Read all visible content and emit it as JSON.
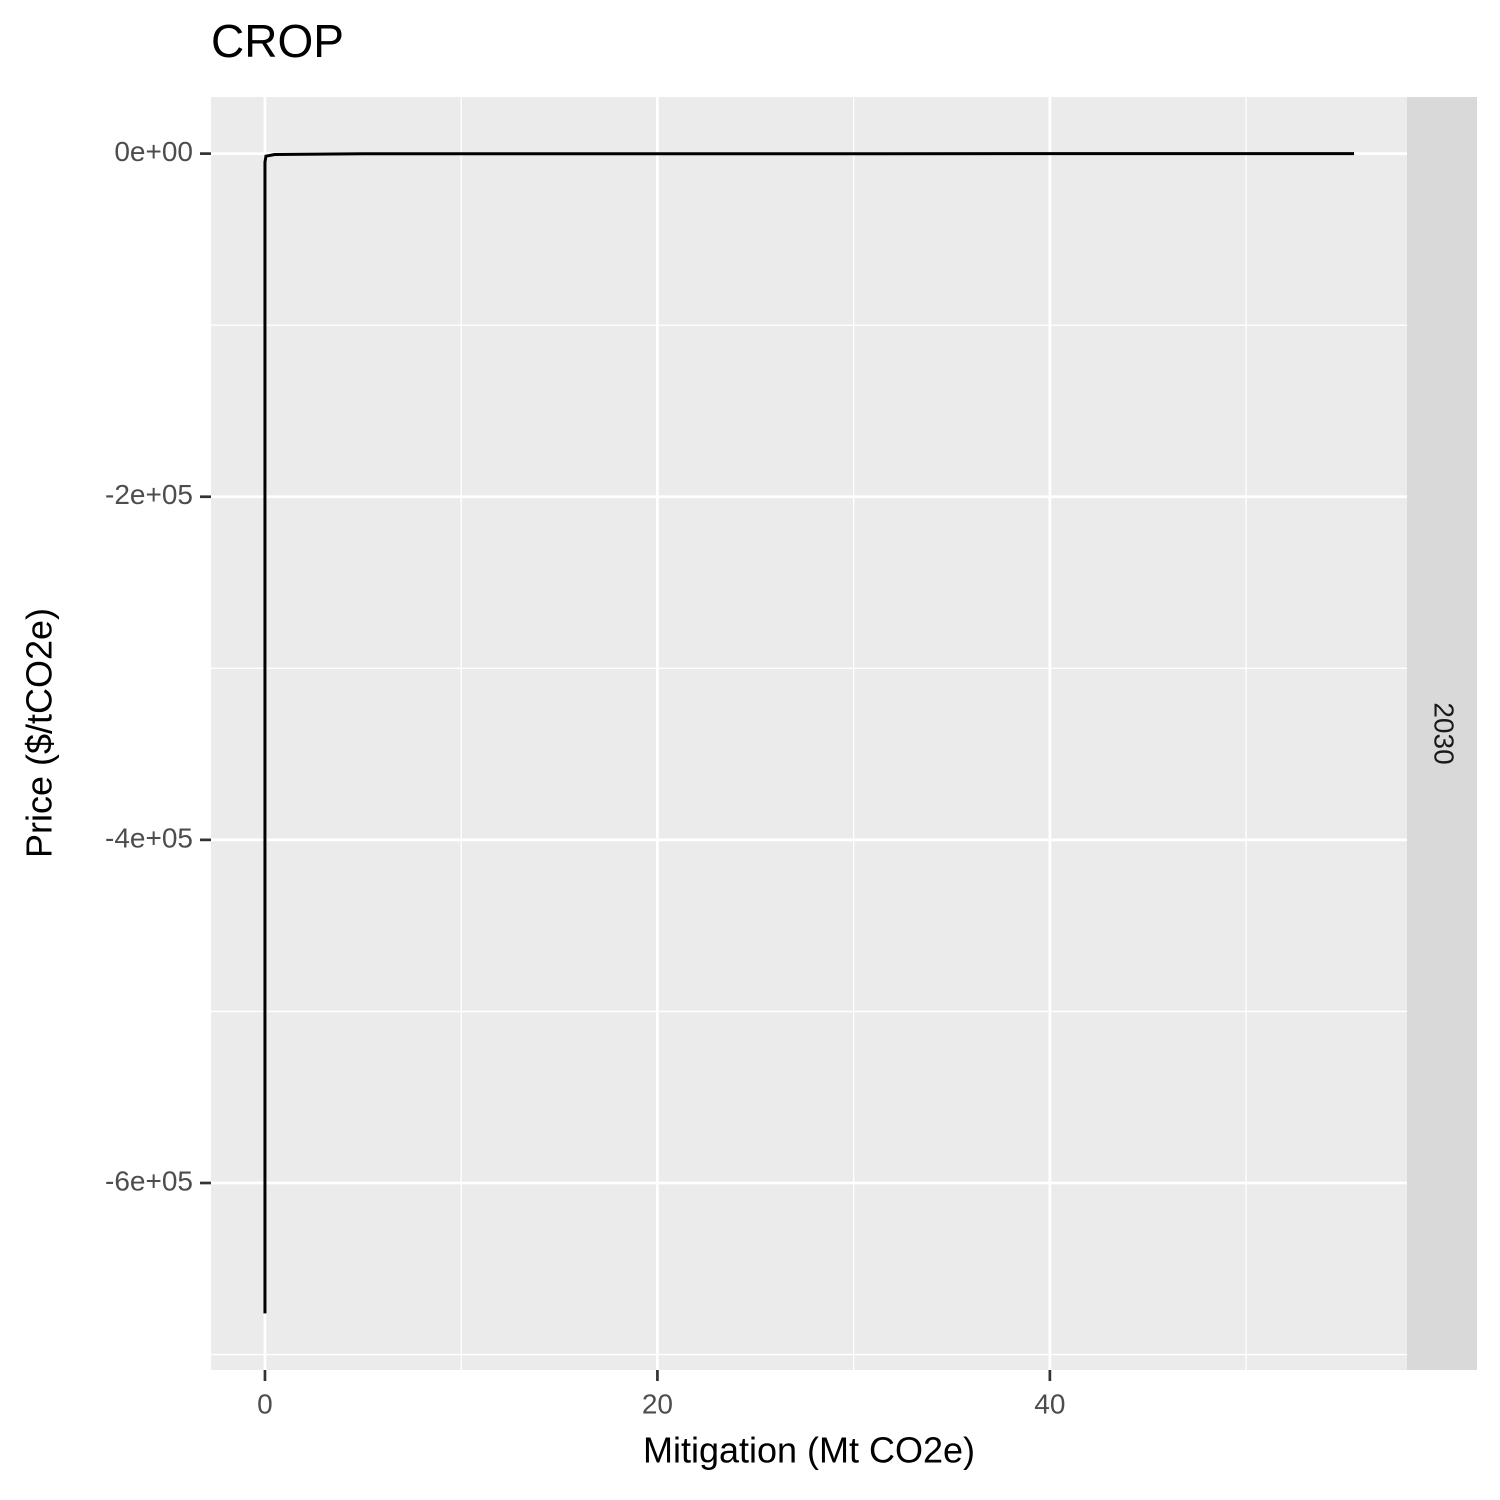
{
  "chart_data": {
    "type": "line",
    "title": "CROP",
    "x_label": "Mitigation (Mt CO2e)",
    "y_label": "Price ($/tCO2e)",
    "facet_label": "2030",
    "x": [
      0,
      0,
      0.05,
      0.5,
      5,
      55.5
    ],
    "series": [
      {
        "color": "#000000",
        "values": [
          -676000,
          -5000,
          -1500,
          -500,
          -100,
          0
        ]
      }
    ],
    "xlim": [
      -2.75,
      58.2
    ],
    "ylim": [
      -709000,
      33000
    ],
    "xticks": [
      0,
      20,
      40
    ],
    "yticks": [
      {
        "value": 0,
        "label": "0e+00"
      },
      {
        "value": -200000,
        "label": "-2e+05"
      },
      {
        "value": -400000,
        "label": "-4e+05"
      },
      {
        "value": -600000,
        "label": "-6e+05"
      }
    ],
    "x_minor_ticks": [
      10,
      30,
      50
    ],
    "y_minor_ticks": [
      -100000,
      -300000,
      -500000,
      -700000
    ],
    "grid": true,
    "panel_color": "#ebebeb",
    "strip_color": "#d9d9d9"
  }
}
